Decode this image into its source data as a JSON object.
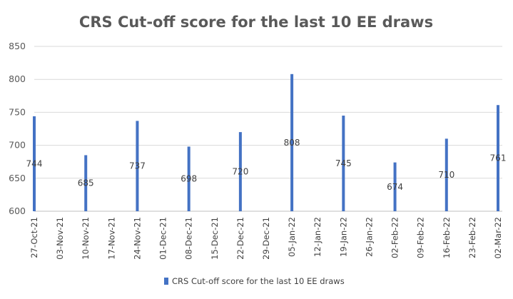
{
  "chart_data": {
    "type": "bar",
    "title": "CRS Cut-off score for the last 10 EE draws",
    "xlabel": "",
    "ylabel": "",
    "ylim": [
      600,
      850
    ],
    "yticks": [
      600,
      650,
      700,
      750,
      800,
      850
    ],
    "grid": true,
    "legend_position": "bottom",
    "categories": [
      "27-Oct-21",
      "03-Nov-21",
      "10-Nov-21",
      "17-Nov-21",
      "24-Nov-21",
      "01-Dec-21",
      "08-Dec-21",
      "15-Dec-21",
      "22-Dec-21",
      "29-Dec-21",
      "05-Jan-22",
      "12-Jan-22",
      "19-Jan-22",
      "26-Jan-22",
      "02-Feb-22",
      "09-Feb-22",
      "16-Feb-22",
      "23-Feb-22",
      "02-Mar-22"
    ],
    "series": [
      {
        "name": "CRS Cut-off score for the last 10 EE draws",
        "color": "#4472C4",
        "points": [
          {
            "x": "27-Oct-21",
            "y": 744
          },
          {
            "x": "10-Nov-21",
            "y": 685
          },
          {
            "x": "24-Nov-21",
            "y": 737
          },
          {
            "x": "08-Dec-21",
            "y": 698
          },
          {
            "x": "22-Dec-21",
            "y": 720
          },
          {
            "x": "05-Jan-22",
            "y": 808
          },
          {
            "x": "19-Jan-22",
            "y": 745
          },
          {
            "x": "02-Feb-22",
            "y": 674
          },
          {
            "x": "16-Feb-22",
            "y": 710
          },
          {
            "x": "02-Mar-22",
            "y": 761
          }
        ]
      }
    ]
  }
}
